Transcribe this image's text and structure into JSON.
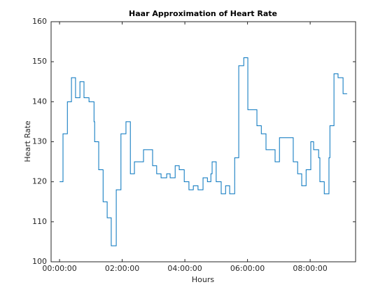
{
  "chart_data": {
    "type": "stairs",
    "title": "Haar Approximation of Heart Rate",
    "xlabel": "Hours",
    "ylabel": "Heart Rate",
    "x": [
      0,
      0.11,
      0.25,
      0.38,
      0.51,
      0.65,
      0.78,
      0.94,
      1.1,
      1.12,
      1.25,
      1.39,
      1.52,
      1.65,
      1.81,
      1.96,
      2.12,
      2.26,
      2.39,
      2.68,
      2.97,
      3.1,
      3.24,
      3.42,
      3.53,
      3.69,
      3.82,
      3.98,
      4.13,
      4.27,
      4.42,
      4.58,
      4.72,
      4.83,
      4.87,
      5.0,
      5.16,
      5.3,
      5.43,
      5.59,
      5.72,
      5.88,
      6.01,
      6.3,
      6.44,
      6.59,
      6.88,
      7.02,
      7.46,
      7.6,
      7.73,
      7.87,
      8.02,
      8.11,
      8.27,
      8.31,
      8.45,
      8.6,
      8.63,
      8.76,
      8.89,
      9.05,
      9.18
    ],
    "values": [
      120,
      132,
      140,
      146,
      141,
      145,
      141,
      140,
      135,
      130,
      123,
      115,
      111,
      104,
      118,
      132,
      135,
      122,
      125,
      128,
      124,
      122,
      121,
      122,
      121,
      124,
      123,
      120,
      118,
      119,
      118,
      121,
      120,
      122,
      125,
      120,
      117,
      119,
      117,
      126,
      149,
      151,
      138,
      134,
      132,
      128,
      125,
      131,
      125,
      122,
      119,
      123,
      130,
      128,
      126,
      120,
      117,
      126,
      134,
      147,
      146,
      142,
      142
    ],
    "color": "#0072bd",
    "xlim": [
      -0.27,
      9.45
    ],
    "xticks": [
      {
        "value": 0,
        "label": "00:00:00"
      },
      {
        "value": 2,
        "label": "02:00:00"
      },
      {
        "value": 4,
        "label": "04:00:00"
      },
      {
        "value": 6,
        "label": "06:00:00"
      },
      {
        "value": 8,
        "label": "08:00:00"
      }
    ],
    "ylim": [
      100,
      160
    ],
    "yticks": [
      100,
      110,
      120,
      130,
      140,
      150,
      160
    ]
  }
}
